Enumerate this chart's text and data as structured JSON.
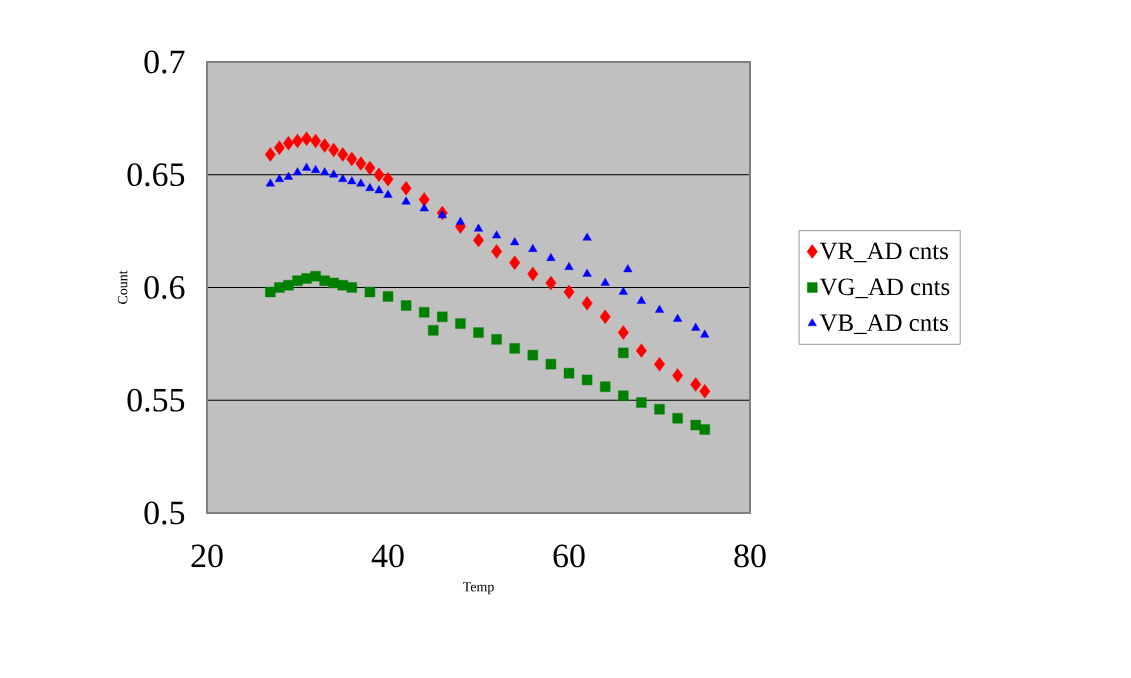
{
  "chart_data": {
    "type": "scatter",
    "xlabel": "Temp",
    "ylabel": "Count",
    "xlim": [
      20,
      80
    ],
    "ylim": [
      0.5,
      0.7
    ],
    "xticks": [
      20,
      40,
      60,
      80
    ],
    "yticks": [
      0.5,
      0.55,
      0.6,
      0.65,
      0.7
    ],
    "grid": "y",
    "legend": "right",
    "series": [
      {
        "name": "VR_AD cnts",
        "color": "#ff0000",
        "marker": "diamond",
        "x": [
          27,
          28,
          29,
          30,
          31,
          32,
          33,
          34,
          35,
          36,
          37,
          38,
          39,
          40,
          42,
          44,
          46,
          48,
          50,
          52,
          54,
          56,
          58,
          60,
          62,
          64,
          66,
          68,
          70,
          72,
          74,
          75
        ],
        "values": [
          0.659,
          0.662,
          0.664,
          0.665,
          0.666,
          0.665,
          0.663,
          0.661,
          0.659,
          0.657,
          0.655,
          0.653,
          0.65,
          0.648,
          0.644,
          0.639,
          0.633,
          0.627,
          0.621,
          0.616,
          0.611,
          0.606,
          0.602,
          0.598,
          0.593,
          0.587,
          0.58,
          0.572,
          0.566,
          0.561,
          0.557,
          0.554
        ]
      },
      {
        "name": "VG_AD cnts",
        "color": "#008000",
        "marker": "square",
        "x": [
          27,
          28,
          29,
          30,
          31,
          32,
          33,
          34,
          35,
          36,
          38,
          40,
          42,
          44,
          45,
          46,
          48,
          50,
          52,
          54,
          56,
          58,
          60,
          62,
          64,
          66,
          66,
          68,
          70,
          72,
          74,
          75
        ],
        "values": [
          0.598,
          0.6,
          0.601,
          0.603,
          0.604,
          0.605,
          0.603,
          0.602,
          0.601,
          0.6,
          0.598,
          0.596,
          0.592,
          0.589,
          0.581,
          0.587,
          0.584,
          0.58,
          0.577,
          0.573,
          0.57,
          0.566,
          0.562,
          0.559,
          0.556,
          0.552,
          0.571,
          0.549,
          0.546,
          0.542,
          0.539,
          0.537
        ]
      },
      {
        "name": "VB_AD cnts",
        "color": "#0000ff",
        "marker": "triangle",
        "x": [
          27,
          28,
          29,
          30,
          31,
          32,
          33,
          34,
          35,
          36,
          37,
          38,
          39,
          40,
          42,
          44,
          46,
          48,
          50,
          52,
          54,
          56,
          58,
          60,
          62,
          64,
          66,
          68,
          70,
          72,
          74,
          75,
          62,
          66.5
        ],
        "values": [
          0.646,
          0.648,
          0.649,
          0.651,
          0.653,
          0.652,
          0.651,
          0.65,
          0.648,
          0.647,
          0.646,
          0.644,
          0.643,
          0.641,
          0.638,
          0.635,
          0.632,
          0.629,
          0.626,
          0.623,
          0.62,
          0.617,
          0.613,
          0.609,
          0.606,
          0.602,
          0.598,
          0.594,
          0.59,
          0.586,
          0.582,
          0.579,
          0.622,
          0.608
        ]
      }
    ]
  }
}
